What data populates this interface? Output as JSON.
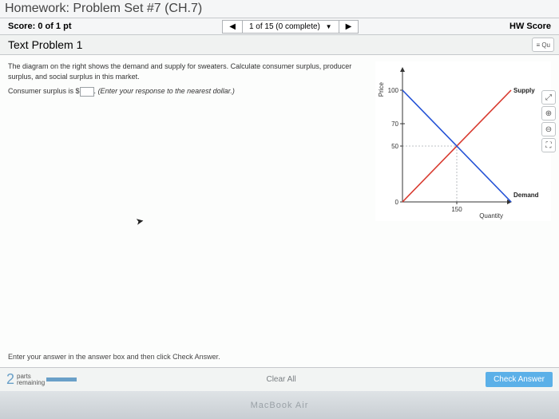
{
  "header": {
    "homework_title": "Homework: Problem Set #7 (CH.7)",
    "score_label": "Score:",
    "score_value": "0 of 1 pt",
    "nav_prev": "◀",
    "nav_status": "1 of 15 (0 complete)",
    "nav_dd": "▼",
    "nav_next": "▶",
    "hw_score_label": "HW Score",
    "problem_title": "Text Problem 1",
    "list_icon": "≡ Qu"
  },
  "tools": {
    "zoom_in": "⤢",
    "zoom_out": "⊕",
    "reset": "⊖",
    "full": "⛶"
  },
  "question": {
    "p1": "The diagram on the right shows the demand and supply for sweaters. Calculate consumer surplus, producer surplus, and social surplus in this market.",
    "p2a": "Consumer surplus is $",
    "p2b": ". ",
    "hint": "(Enter your response to the nearest dollar.)"
  },
  "chart": {
    "type": "line",
    "x_axis_label": "Quantity",
    "y_axis_label": "Price",
    "supply_label": "Supply",
    "demand_label": "Demand",
    "xlim": [
      0,
      300
    ],
    "ylim": [
      0,
      120
    ],
    "y_ticks": [
      0,
      50,
      70,
      100
    ],
    "x_ticks": [
      0,
      150
    ],
    "eq_x": 150,
    "eq_y": 50,
    "supply": {
      "x": [
        0,
        300
      ],
      "y": [
        0,
        100
      ],
      "color": "#d83a2f",
      "width": 1.6
    },
    "demand": {
      "x": [
        0,
        300
      ],
      "y": [
        100,
        0
      ],
      "color": "#2452d6",
      "width": 1.6
    },
    "tick_color": "#333333",
    "dash_color": "#a8aeb3",
    "bg": "#ffffff",
    "label_fontsize": 8
  },
  "footer": {
    "instruction": "Enter your answer in the answer box and then click Check Answer.",
    "parts_n": "2",
    "parts_a": "parts",
    "parts_b": "remaining",
    "clear": "Clear All",
    "check": "Check Answer"
  },
  "mac": {
    "brand": "MacBook Air"
  }
}
